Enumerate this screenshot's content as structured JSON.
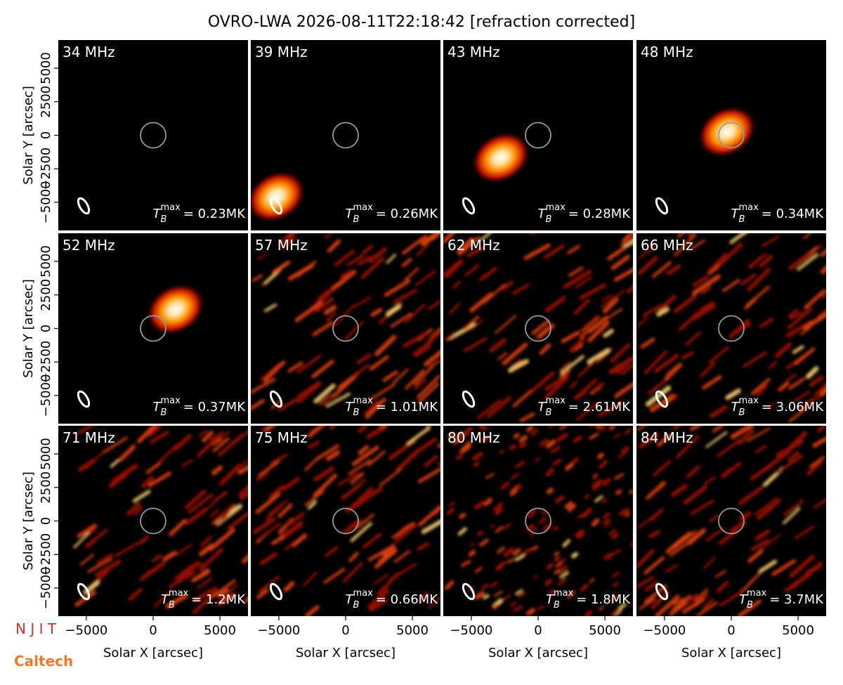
{
  "chart_data": {
    "type": "image-grid",
    "title": "OVRO-LWA 2026-08-11T22:18:42 [refraction corrected]",
    "xlabel": "Solar X [arcsec]",
    "ylabel": "Solar Y [arcsec]",
    "xlim": [
      -7100,
      7100
    ],
    "ylim": [
      -7100,
      7100
    ],
    "xticks": [
      {
        "value": -5000,
        "label": "−5000"
      },
      0,
      5000
    ],
    "yticks": [
      {
        "value": -5000,
        "label": "−5000"
      },
      {
        "value": -2500,
        "label": "−2500"
      },
      0,
      2500,
      5000
    ],
    "tb_symbol": {
      "base": "T",
      "sub": "B",
      "sup": "max"
    },
    "panels": [
      {
        "label": "34 MHz",
        "tb_max_label": "= 0.23MK"
      },
      {
        "label": "39 MHz",
        "tb_max_label": "= 0.26MK",
        "source_x": -5200,
        "source_y": -4580
      },
      {
        "label": "43 MHz",
        "tb_max_label": "= 0.28MK",
        "source_x": -2790,
        "source_y": -1680
      },
      {
        "label": "48 MHz",
        "tb_max_label": "= 0.34MK",
        "source_x": -320,
        "source_y": 260
      },
      {
        "label": "52 MHz",
        "tb_max_label": "= 0.37MK",
        "source_x": 1680,
        "source_y": 1420
      },
      {
        "label": "57 MHz",
        "tb_max_label": "= 1.01MK"
      },
      {
        "label": "62 MHz",
        "tb_max_label": "= 2.61MK"
      },
      {
        "label": "66 MHz",
        "tb_max_label": "= 3.06MK"
      },
      {
        "label": "71 MHz",
        "tb_max_label": "= 1.2MK"
      },
      {
        "label": "75 MHz",
        "tb_max_label": "= 0.66MK"
      },
      {
        "label": "80 MHz",
        "tb_max_label": "= 1.8MK"
      },
      {
        "label": "84 MHz",
        "tb_max_label": "= 3.7MK"
      }
    ]
  },
  "logos": {
    "njit": "N J I T",
    "caltech": "Caltech"
  }
}
